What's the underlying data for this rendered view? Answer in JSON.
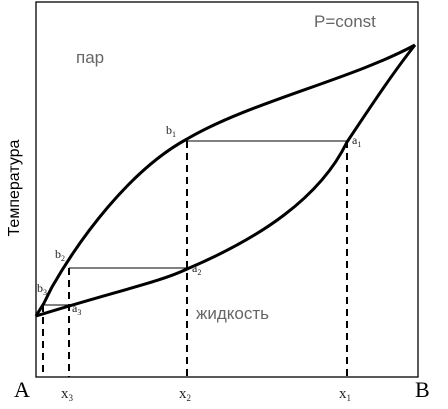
{
  "labels": {
    "condition": "P=const",
    "vapor_region": "пар",
    "liquid_region": "жидкость",
    "y_axis": "Температура",
    "left_end": "A",
    "right_end": "B"
  },
  "x_tick_labels": [
    {
      "base": "x",
      "sub": "3"
    },
    {
      "base": "x",
      "sub": "2"
    },
    {
      "base": "x",
      "sub": "1"
    }
  ],
  "curve_points": [
    {
      "base": "b",
      "sub": "1"
    },
    {
      "base": "a",
      "sub": "1"
    },
    {
      "base": "b",
      "sub": "2"
    },
    {
      "base": "a",
      "sub": "2"
    },
    {
      "base": "b",
      "sub": "3"
    },
    {
      "base": "a",
      "sub": "3"
    }
  ],
  "colors": {
    "line": "#000000",
    "text": "#222222",
    "region_text": "#666666",
    "background": "#ffffff"
  }
}
